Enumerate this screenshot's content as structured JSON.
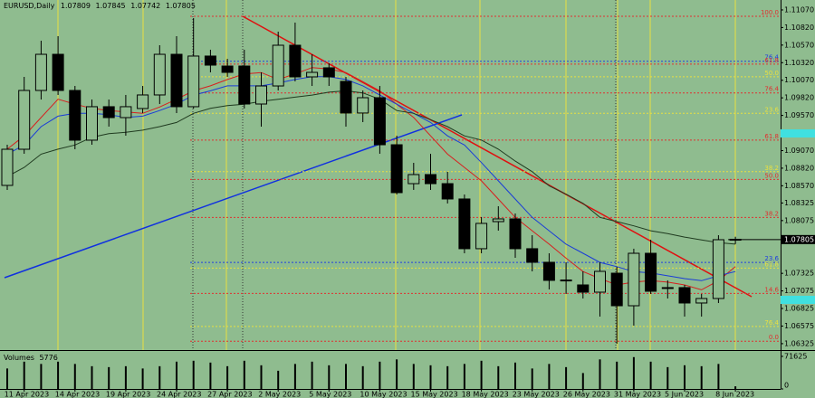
{
  "chart_data": {
    "type": "candlestick",
    "symbol": "EURUSD,Daily",
    "categories": [
      null,
      "11 Apr 2023",
      null,
      null,
      "14 Apr 2023",
      null,
      null,
      "19 Apr 2023",
      null,
      null,
      "24 Apr 2023",
      null,
      null,
      "27 Apr 2023",
      null,
      null,
      "2 May 2023",
      null,
      null,
      "5 May 2023",
      null,
      null,
      "10 May 2023",
      null,
      null,
      "15 May 2023",
      null,
      null,
      "18 May 2023",
      null,
      null,
      "23 May 2023",
      null,
      null,
      "26 May 2023",
      null,
      null,
      "31 May 2023",
      null,
      null,
      "5 Jun 2023",
      null,
      null,
      "8 Jun 2023"
    ],
    "open": [
      1.08575,
      1.09089,
      1.09925,
      1.10439,
      1.09925,
      1.09218,
      1.09694,
      1.09539,
      1.09668,
      1.09861,
      1.10439,
      1.09694,
      1.10414,
      1.10272,
      1.10272,
      1.09732,
      1.09989,
      1.10568,
      1.10118,
      1.10247,
      1.10054,
      1.09604,
      1.09822,
      1.09153,
      1.086,
      1.08729,
      1.086,
      1.08382,
      1.07675,
      1.0806,
      1.08099,
      1.07675,
      1.07482,
      1.07225,
      1.0716,
      1.07057,
      1.07327,
      1.06864,
      1.0761,
      1.07122,
      1.07122,
      1.06903,
      1.06967,
      1.07809
    ],
    "high": [
      1.09153,
      1.10118,
      1.10632,
      1.10697,
      1.09989,
      1.09796,
      1.09796,
      1.09861,
      1.09989,
      1.10568,
      1.10697,
      1.10954,
      1.10504,
      1.10375,
      1.10504,
      1.10182,
      1.10761,
      1.1089,
      1.10439,
      1.10311,
      1.10118,
      1.09925,
      1.09989,
      1.09282,
      1.08896,
      1.09025,
      1.08768,
      1.08446,
      1.08125,
      1.08279,
      1.08176,
      1.07867,
      1.0761,
      1.07482,
      1.07353,
      1.07482,
      1.07417,
      1.07675,
      1.07803,
      1.07225,
      1.0716,
      1.07032,
      1.07867,
      1.07845
    ],
    "low": [
      1.08511,
      1.09025,
      1.09796,
      1.09861,
      1.09089,
      1.09153,
      1.09411,
      1.09282,
      1.09604,
      1.09732,
      1.09604,
      1.09668,
      1.10182,
      1.10118,
      1.09668,
      1.09411,
      1.09925,
      1.10054,
      1.09989,
      1.09989,
      1.09411,
      1.09475,
      1.09025,
      1.08446,
      1.08511,
      1.08511,
      1.08318,
      1.0761,
      1.0761,
      1.07932,
      1.07546,
      1.07353,
      1.07096,
      1.07032,
      1.06967,
      1.0671,
      1.06324,
      1.06581,
      1.07032,
      1.06967,
      1.0671,
      1.0671,
      1.06903,
      1.07742
    ],
    "close": [
      1.09089,
      1.09925,
      1.10439,
      1.09925,
      1.09218,
      1.09694,
      1.09539,
      1.09694,
      1.09861,
      1.10439,
      1.09694,
      1.10414,
      1.10285,
      1.10182,
      1.09732,
      1.09989,
      1.10568,
      1.10118,
      1.10182,
      1.10118,
      1.09604,
      1.09822,
      1.09153,
      1.08472,
      1.08729,
      1.086,
      1.08382,
      1.07675,
      1.08035,
      1.08099,
      1.07675,
      1.07482,
      1.07225,
      1.0723,
      1.07057,
      1.07353,
      1.06864,
      1.0761,
      1.0707,
      1.0711,
      1.06903,
      1.06967,
      1.07803,
      1.07805
    ],
    "up_color": "#8fbc8f",
    "down_color": "#000000",
    "background": "#8fbc8f",
    "ylim": [
      1.06234,
      1.11211
    ],
    "yticks": [
      {
        "value": 1.1107,
        "label": "1.11070"
      },
      {
        "value": 1.1082,
        "label": "1.10820"
      },
      {
        "value": 1.1057,
        "label": "1.10570"
      },
      {
        "value": 1.1032,
        "label": "1.10320"
      },
      {
        "value": 1.1007,
        "label": "1.10070"
      },
      {
        "value": 1.0982,
        "label": "1.09820"
      },
      {
        "value": 1.0957,
        "label": "1.09570"
      },
      {
        "value": 1.0907,
        "label": "1.09070"
      },
      {
        "value": 1.0882,
        "label": "1.08820"
      },
      {
        "value": 1.0857,
        "label": "1.08570"
      },
      {
        "value": 1.08325,
        "label": "1.08325"
      },
      {
        "value": 1.08075,
        "label": "1.08075"
      },
      {
        "value": 1.07325,
        "label": "1.07325"
      },
      {
        "value": 1.07075,
        "label": "1.07075"
      },
      {
        "value": 1.06825,
        "label": "1.06825"
      },
      {
        "value": 1.06575,
        "label": "1.06575"
      },
      {
        "value": 1.06325,
        "label": "1.06325"
      }
    ],
    "lines": [
      {
        "color": "#d81e1e",
        "values": [
          1.0909,
          1.0928,
          1.0954,
          1.098,
          1.0973,
          1.0967,
          1.0964,
          1.0962,
          1.096,
          1.0969,
          1.098,
          1.0992,
          1.0999,
          1.1008,
          1.1016,
          1.1018,
          1.1008,
          1.1016,
          1.1025,
          1.1023,
          1.1018,
          1.1005,
          1.0992,
          1.0973,
          1.0954,
          1.0928,
          1.0902,
          1.0883,
          1.0864,
          1.0838,
          1.0812,
          1.0793,
          1.0774,
          1.0754,
          1.0735,
          1.0725,
          1.0716,
          1.072,
          1.0722,
          1.072,
          1.0716,
          1.0709,
          1.0722,
          1.0742
        ]
      },
      {
        "color": "#1a3cd8",
        "values": [
          1.0902,
          1.0915,
          1.0941,
          1.0956,
          1.096,
          1.096,
          1.0958,
          1.0954,
          1.0956,
          1.0964,
          1.0973,
          1.0986,
          1.0992,
          1.0999,
          1.0999,
          1.0999,
          1.1003,
          1.1008,
          1.1012,
          1.1012,
          1.1008,
          1.0999,
          1.0986,
          1.0973,
          1.096,
          1.0947,
          1.0928,
          1.0915,
          1.089,
          1.0864,
          1.0838,
          1.0812,
          1.0793,
          1.0774,
          1.0761,
          1.0748,
          1.0742,
          1.0735,
          1.0733,
          1.0729,
          1.0725,
          1.0722,
          1.0729,
          1.0735
        ]
      },
      {
        "color": "#1f3a1f",
        "values": [
          1.087,
          1.0883,
          1.0902,
          1.0909,
          1.0915,
          1.0926,
          1.0931,
          1.0933,
          1.0936,
          1.0941,
          1.0947,
          1.096,
          1.0967,
          1.0971,
          1.0973,
          1.0977,
          1.098,
          1.0983,
          1.0986,
          1.099,
          1.0992,
          1.0989,
          1.098,
          1.0964,
          1.096,
          1.0951,
          1.0941,
          1.0928,
          1.0922,
          1.0909,
          1.0892,
          1.0877,
          1.0857,
          1.0845,
          1.0832,
          1.0812,
          1.0806,
          1.08,
          1.0793,
          1.0789,
          1.0784,
          1.078,
          1.0776,
          1.0774
        ]
      }
    ],
    "levels": [
      {
        "value": 1.1098,
        "label": "100.0",
        "color": "#e03030"
      },
      {
        "value": 1.1034,
        "label": "76.4",
        "color": "#2040e0"
      },
      {
        "value": 1.103,
        "label": "61.8",
        "color": "#e03030"
      },
      {
        "value": 1.1012,
        "label": "50.0",
        "color": "#e8e040"
      },
      {
        "value": 1.0989,
        "label": "76.4",
        "color": "#e03030"
      },
      {
        "value": 1.096,
        "label": "23.6",
        "color": "#e8e040"
      },
      {
        "value": 1.0922,
        "label": "61.8",
        "color": "#e03030"
      },
      {
        "value": 1.0877,
        "label": "38.2",
        "color": "#e8e040"
      },
      {
        "value": 1.0866,
        "label": "50.0",
        "color": "#e03030"
      },
      {
        "value": 1.0812,
        "label": "38.2",
        "color": "#e03030"
      },
      {
        "value": 1.0748,
        "label": "23.6",
        "color": "#2040e0"
      },
      {
        "value": 1.074,
        "label": "61.8",
        "color": "#e8e040"
      },
      {
        "value": 1.0704,
        "label": "14.6",
        "color": "#e03030"
      },
      {
        "value": 1.0657,
        "label": "76.4",
        "color": "#e8e040"
      },
      {
        "value": 1.0636,
        "label": "0.0",
        "color": "#e03030"
      }
    ],
    "volume": {
      "label": "Volumes",
      "color": "#000000",
      "values": [
        45000,
        60000,
        55000,
        60000,
        55000,
        50000,
        48000,
        50000,
        45000,
        50000,
        60000,
        62000,
        58000,
        50000,
        62000,
        52000,
        40000,
        55000,
        60000,
        52000,
        55000,
        50000,
        60000,
        65000,
        55000,
        52000,
        50000,
        55000,
        62000,
        50000,
        58000,
        45000,
        55000,
        48000,
        35000,
        65000,
        60000,
        70000,
        60000,
        48000,
        52000,
        50000,
        55000,
        5776
      ],
      "ylim": [
        0,
        83500
      ],
      "yticks": [
        71625,
        0
      ]
    }
  }
}
